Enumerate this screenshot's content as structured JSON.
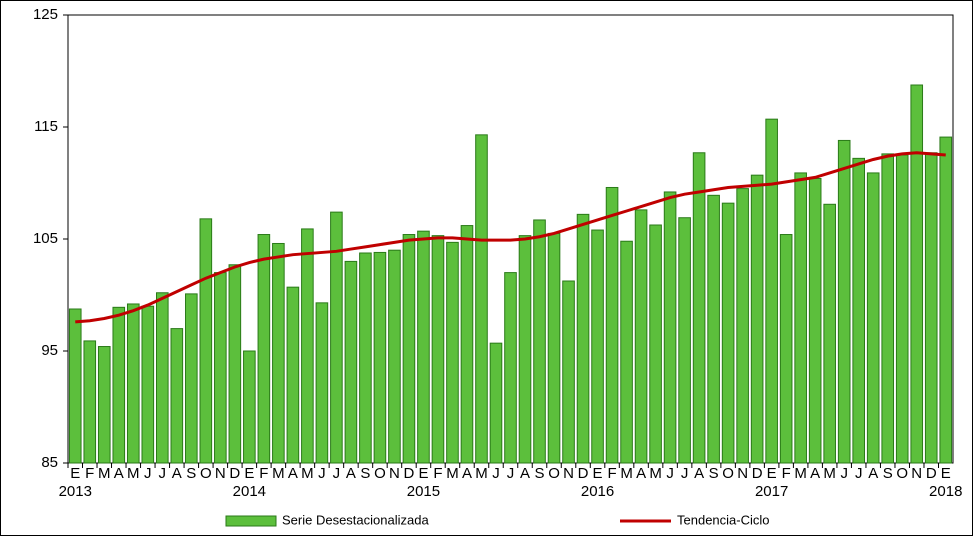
{
  "chart_data": {
    "type": "bar_line",
    "categories": [
      "E",
      "F",
      "M",
      "A",
      "M",
      "J",
      "J",
      "A",
      "S",
      "O",
      "N",
      "D",
      "E",
      "F",
      "M",
      "A",
      "M",
      "J",
      "J",
      "A",
      "S",
      "O",
      "N",
      "D",
      "E",
      "F",
      "M",
      "A",
      "M",
      "J",
      "J",
      "A",
      "S",
      "O",
      "N",
      "D",
      "E",
      "F",
      "M",
      "A",
      "M",
      "J",
      "J",
      "A",
      "S",
      "O",
      "N",
      "D",
      "E",
      "F",
      "M",
      "A",
      "M",
      "J",
      "J",
      "A",
      "S",
      "O",
      "N",
      "D",
      "E"
    ],
    "year_labels": [
      "2013",
      null,
      null,
      null,
      null,
      null,
      null,
      null,
      null,
      null,
      null,
      null,
      "2014",
      null,
      null,
      null,
      null,
      null,
      null,
      null,
      null,
      null,
      null,
      null,
      "2015",
      null,
      null,
      null,
      null,
      null,
      null,
      null,
      null,
      null,
      null,
      null,
      "2016",
      null,
      null,
      null,
      null,
      null,
      null,
      null,
      null,
      null,
      null,
      null,
      "2017",
      null,
      null,
      null,
      null,
      null,
      null,
      null,
      null,
      null,
      null,
      null,
      "2018"
    ],
    "series": [
      {
        "name": "Serie Desestacionalizada",
        "kind": "bar",
        "color": "#5cbf3c",
        "values": [
          98.75,
          95.9,
          95.4,
          98.9,
          99.2,
          99.0,
          100.2,
          97.0,
          100.1,
          106.8,
          102.0,
          102.7,
          95.0,
          105.4,
          104.6,
          100.7,
          105.9,
          99.3,
          107.4,
          103.0,
          103.75,
          103.8,
          104.0,
          105.4,
          105.7,
          105.3,
          104.7,
          106.2,
          114.3,
          95.7,
          102.0,
          105.3,
          106.7,
          105.5,
          101.25,
          107.2,
          105.8,
          109.6,
          104.8,
          107.6,
          106.25,
          109.2,
          106.9,
          112.7,
          108.9,
          108.2,
          109.5,
          110.7,
          115.7,
          105.4,
          110.9,
          110.4,
          108.1,
          113.8,
          112.2,
          110.9,
          112.6,
          112.5,
          118.75,
          112.7,
          114.1
        ]
      },
      {
        "name": "Tendencia-Ciclo",
        "kind": "line",
        "color": "#c00000",
        "values": [
          97.6,
          97.7,
          97.9,
          98.2,
          98.6,
          99.1,
          99.7,
          100.3,
          100.9,
          101.5,
          102.0,
          102.5,
          102.9,
          103.2,
          103.4,
          103.6,
          103.7,
          103.8,
          103.9,
          104.1,
          104.3,
          104.5,
          104.7,
          104.9,
          105.0,
          105.1,
          105.1,
          105.0,
          104.9,
          104.9,
          104.9,
          105.0,
          105.2,
          105.5,
          105.9,
          106.3,
          106.7,
          107.1,
          107.5,
          107.9,
          108.3,
          108.7,
          109.0,
          109.2,
          109.4,
          109.6,
          109.7,
          109.8,
          109.9,
          110.1,
          110.3,
          110.5,
          110.9,
          111.3,
          111.7,
          112.1,
          112.4,
          112.6,
          112.7,
          112.6,
          112.5
        ]
      }
    ],
    "ylim": [
      85,
      125
    ],
    "yticks": [
      85,
      95,
      105,
      115,
      125
    ],
    "grid": false
  }
}
